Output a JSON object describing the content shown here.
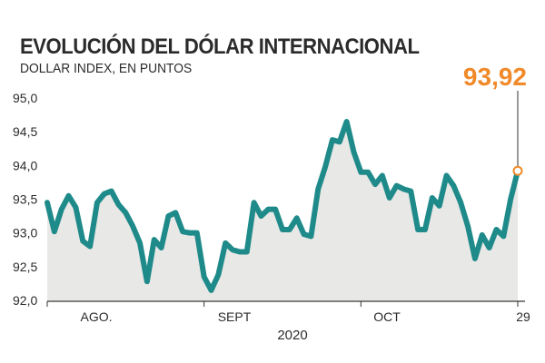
{
  "colors": {
    "line": "#1f8a8a",
    "area": "#e8e8e6",
    "highlight": "#f08a2a",
    "axis": "#333333"
  },
  "chart_data": {
    "type": "area",
    "title": "EVOLUCIÓN DEL DÓLAR INTERNACIONAL",
    "subtitle": "DOLLAR INDEX, EN PUNTOS",
    "ylim": [
      92.0,
      95.0
    ],
    "y_ticks": [
      95.0,
      94.5,
      94.0,
      93.5,
      93.0,
      92.5,
      92.0
    ],
    "y_tick_labels": [
      "95,0",
      "94,5",
      "94,0",
      "93,5",
      "93,0",
      "92,5",
      "92,0"
    ],
    "x_tick_labels": [
      "AGO.",
      "SEPT",
      "OCT",
      "29"
    ],
    "x_label": "2020",
    "grid": false,
    "series": [
      {
        "values": [
          93.45,
          93.02,
          93.35,
          93.55,
          93.38,
          92.88,
          92.8,
          93.45,
          93.58,
          93.62,
          93.42,
          93.3,
          93.1,
          92.85,
          92.28,
          92.9,
          92.78,
          93.25,
          93.3,
          93.02,
          93.0,
          93.0,
          92.35,
          92.15,
          92.38,
          92.85,
          92.75,
          92.72,
          92.72,
          93.45,
          93.25,
          93.35,
          93.35,
          93.05,
          93.05,
          93.22,
          92.98,
          92.95,
          93.65,
          93.98,
          94.38,
          94.35,
          94.65,
          94.2,
          93.9,
          93.9,
          93.72,
          93.85,
          93.52,
          93.7,
          93.65,
          93.62,
          93.05,
          93.05,
          93.52,
          93.4,
          93.85,
          93.7,
          93.45,
          93.1,
          92.62,
          92.97,
          92.78,
          93.05,
          92.95,
          93.5,
          93.92
        ]
      }
    ],
    "last_value_label": "93,92",
    "last_value": 93.92
  }
}
